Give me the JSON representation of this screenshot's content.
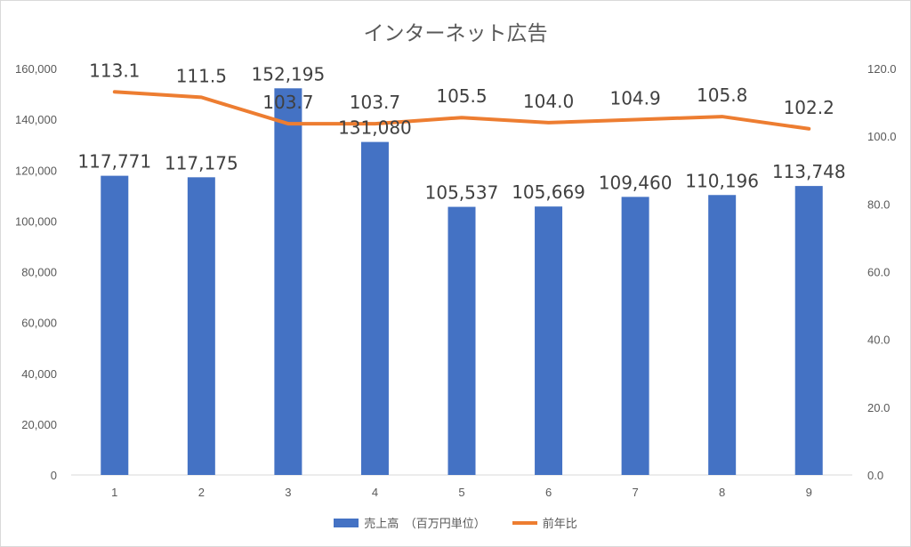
{
  "chart_data": {
    "type": "bar",
    "title": "インターネット広告",
    "categories": [
      "1",
      "2",
      "3",
      "4",
      "5",
      "6",
      "7",
      "8",
      "9"
    ],
    "series": [
      {
        "name": "売上高　（百万円単位）",
        "type": "bar",
        "axis": "left",
        "values": [
          117771,
          117175,
          152195,
          131080,
          105537,
          105669,
          109460,
          110196,
          113748
        ],
        "labels": [
          "117,771",
          "117,175",
          "152,195",
          "131,080",
          "105,537",
          "105,669",
          "109,460",
          "110,196",
          "113,748"
        ],
        "color": "#4472C4"
      },
      {
        "name": "前年比",
        "type": "line",
        "axis": "right",
        "values": [
          113.1,
          111.5,
          103.7,
          103.7,
          105.5,
          104.0,
          104.9,
          105.8,
          102.2
        ],
        "labels": [
          "113.1",
          "111.5",
          "103.7",
          "103.7",
          "105.5",
          "104.0",
          "104.9",
          "105.8",
          "102.2"
        ],
        "color": "#ED7D31"
      }
    ],
    "y_left": {
      "min": 0,
      "max": 160000,
      "step": 20000,
      "ticks": [
        "0",
        "20,000",
        "40,000",
        "60,000",
        "80,000",
        "100,000",
        "120,000",
        "140,000",
        "160,000"
      ]
    },
    "y_right": {
      "min": 0,
      "max": 120,
      "step": 20,
      "ticks": [
        "0.0",
        "20.0",
        "40.0",
        "60.0",
        "80.0",
        "100.0",
        "120.0"
      ]
    },
    "grid": false,
    "legend_position": "bottom"
  }
}
